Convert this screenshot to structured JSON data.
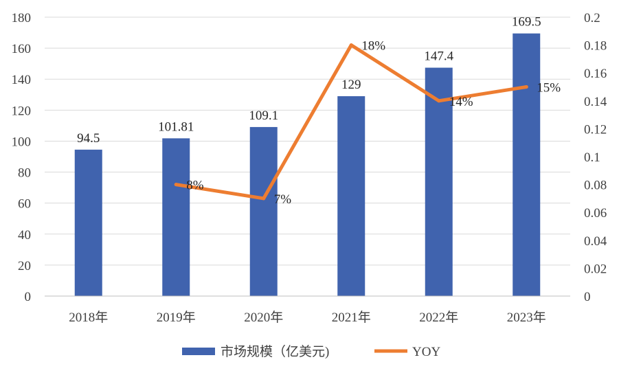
{
  "chart_data": {
    "type": "bar",
    "categories": [
      "2018年",
      "2019年",
      "2020年",
      "2021年",
      "2022年",
      "2023年"
    ],
    "series": [
      {
        "name": "市场规模（亿美元)",
        "type": "bar",
        "axis": "left",
        "color": "#4063AE",
        "values": [
          94.5,
          101.81,
          109.1,
          129,
          147.4,
          169.5
        ],
        "labels": [
          "94.5",
          "101.81",
          "109.1",
          "129",
          "147.4",
          "169.5"
        ]
      },
      {
        "name": "YOY",
        "type": "line",
        "axis": "right",
        "color": "#ED7D31",
        "values": [
          null,
          0.08,
          0.07,
          0.18,
          0.14,
          0.15
        ],
        "labels": [
          null,
          "8%",
          "7%",
          "18%",
          "14%",
          "15%"
        ]
      }
    ],
    "yaxis_left": {
      "min": 0,
      "max": 180,
      "ticks": [
        "0",
        "20",
        "40",
        "60",
        "80",
        "100",
        "120",
        "140",
        "160",
        "180"
      ]
    },
    "yaxis_right": {
      "min": 0,
      "max": 0.2,
      "ticks": [
        "0",
        "0.02",
        "0.04",
        "0.06",
        "0.08",
        "0.1",
        "0.12",
        "0.14",
        "0.16",
        "0.18",
        "0.2"
      ]
    },
    "grid": true,
    "legend_position": "bottom",
    "title": "",
    "xlabel": "",
    "ylabel": ""
  }
}
